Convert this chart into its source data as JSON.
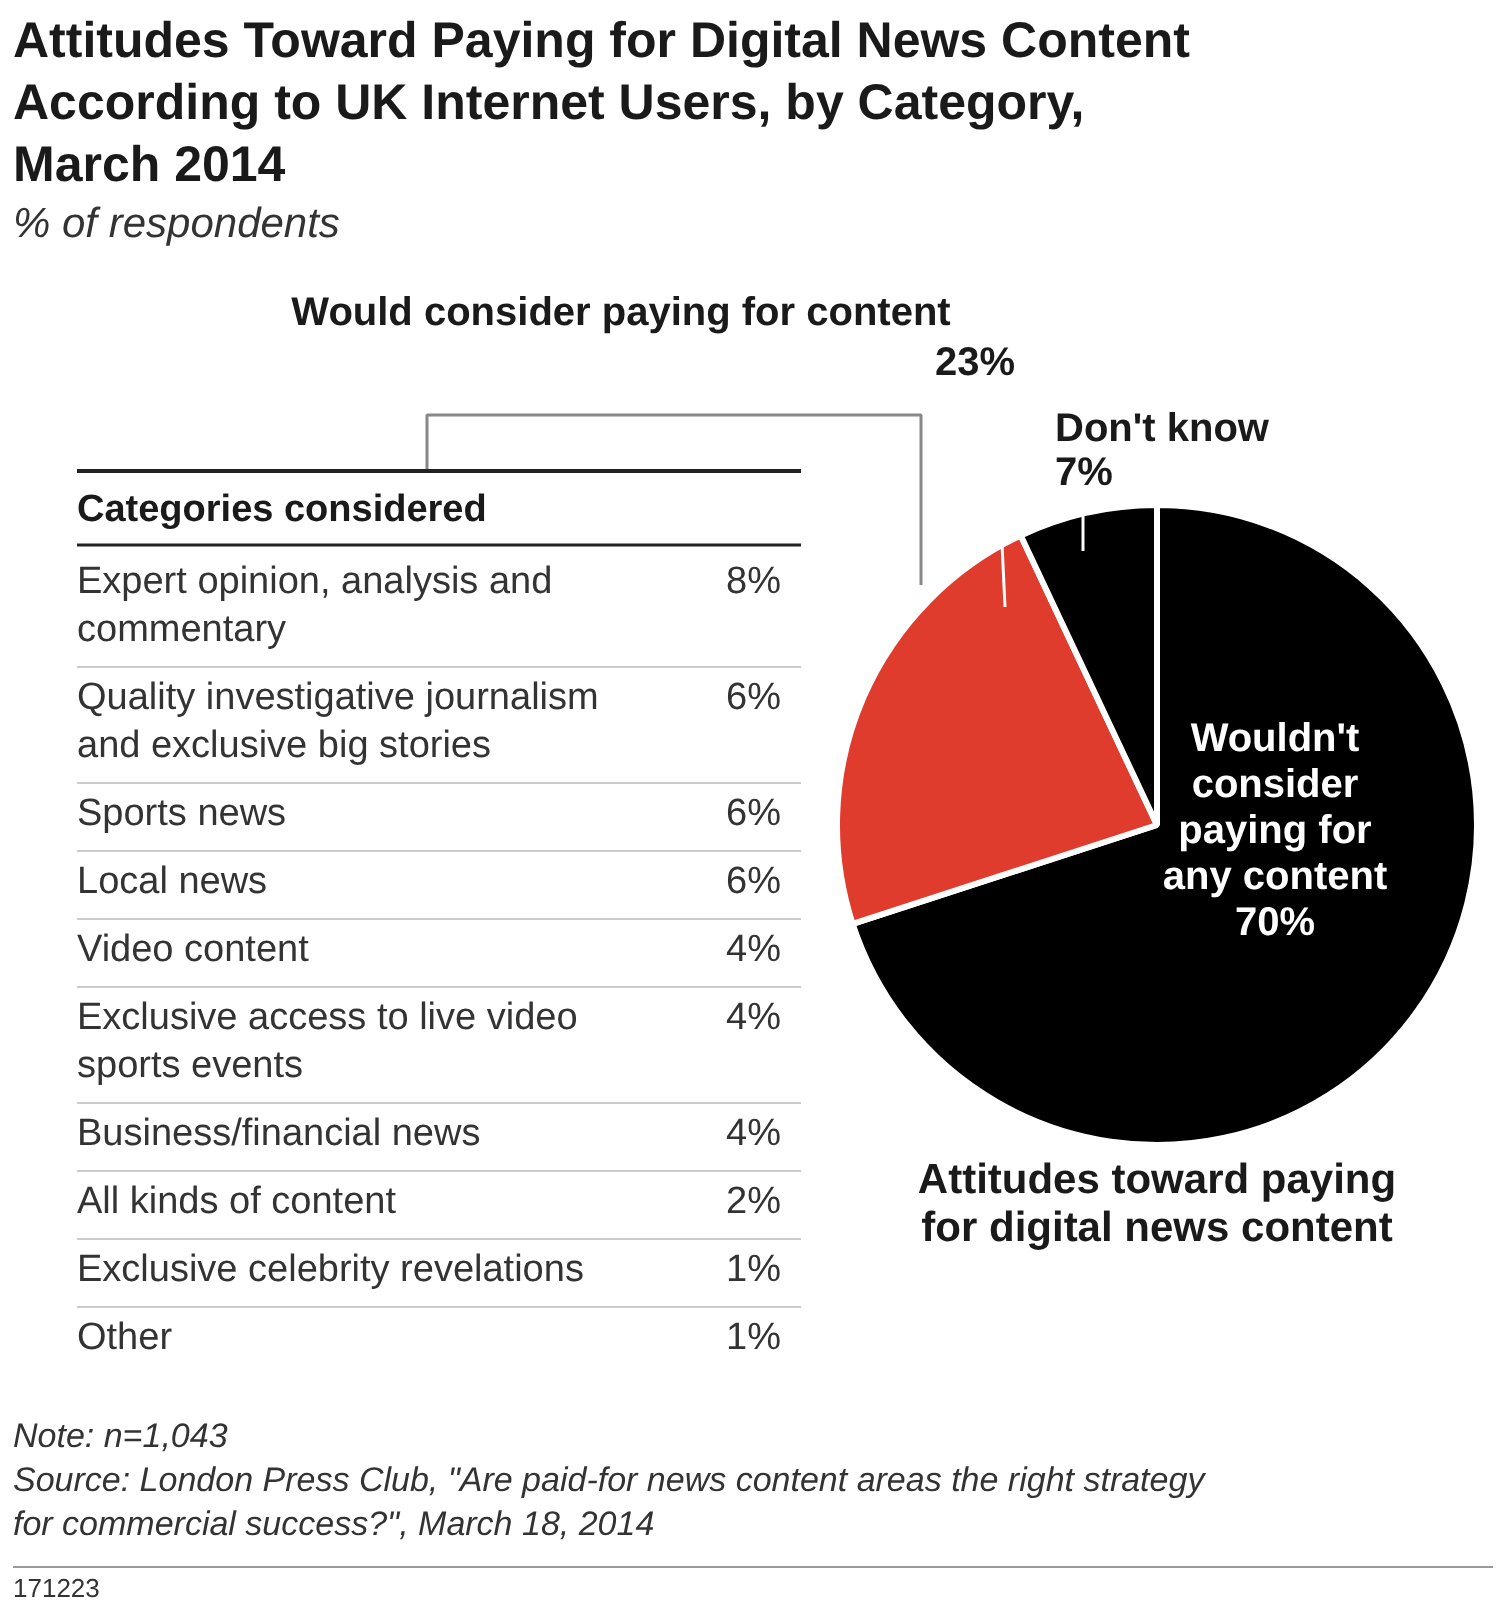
{
  "chart_data": [
    {
      "type": "pie",
      "title": "Attitudes Toward Paying for Digital News Content According to UK Internet Users, by Category, March 2014",
      "subtitle": "% of respondents",
      "xlabel": "Attitudes toward paying for digital news content",
      "categories": [
        "Wouldn't consider paying for any content",
        "Would consider paying for content",
        "Don't know"
      ],
      "values": [
        70,
        23,
        7
      ],
      "value_labels": [
        "70%",
        "23%",
        "7%"
      ],
      "colors": [
        "#000000",
        "#e03c2d",
        "#000000"
      ],
      "annotations": [
        "Note: n=1,043",
        "Source: London Press Club, \"Are paid-for news content areas the right strategy for commercial success?\", March 18, 2014",
        "171223"
      ]
    },
    {
      "type": "other",
      "title": "Categories considered",
      "categories": [
        "Expert opinion, analysis and commentary",
        "Quality investigative journalism and exclusive big stories",
        "Sports news",
        "Local news",
        "Video content",
        "Exclusive access to live video sports events",
        "Business/financial news",
        "All kinds of content",
        "Exclusive celebrity revelations",
        "Other"
      ],
      "value_labels": [
        "8%",
        "6%",
        "6%",
        "6%",
        "4%",
        "4%",
        "4%",
        "2%",
        "1%",
        "1%"
      ]
    }
  ]
}
